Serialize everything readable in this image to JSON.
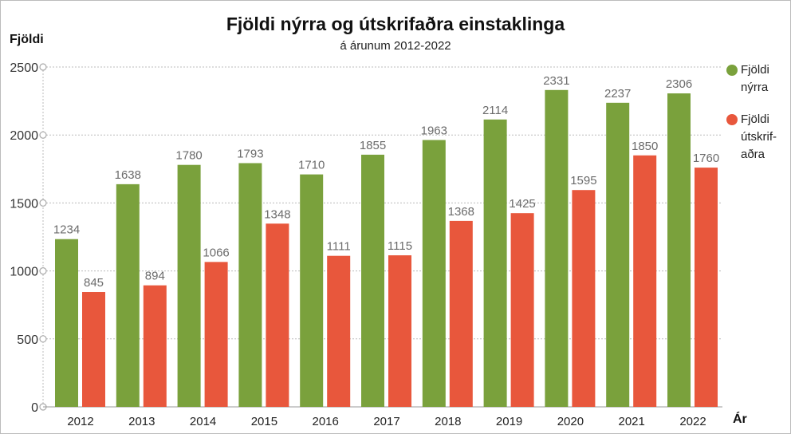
{
  "chart_data": {
    "type": "bar",
    "title": "Fjöldi nýrra og útskrifaðra einstaklinga",
    "subtitle": "á árunum 2012-2022",
    "ylabel": "Fjöldi",
    "xlabel": "Ár",
    "ylim": [
      0,
      2500
    ],
    "yticks": [
      0,
      500,
      1000,
      1500,
      2000,
      2500
    ],
    "grid": true,
    "legend_position": "right",
    "categories": [
      "2012",
      "2013",
      "2014",
      "2015",
      "2016",
      "2017",
      "2018",
      "2019",
      "2020",
      "2021",
      "2022"
    ],
    "series": [
      {
        "name": "Fjöldi nýrra",
        "legend_text": "Fjöldi\nnýrra",
        "color": "#7aa13c",
        "values": [
          1234,
          1638,
          1780,
          1793,
          1710,
          1855,
          1963,
          2114,
          2331,
          2237,
          2306
        ]
      },
      {
        "name": "Fjöldi útskrifaðra",
        "legend_text": "Fjöldi\nútskrif-\naðra",
        "color": "#e8573c",
        "values": [
          845,
          894,
          1066,
          1348,
          1111,
          1115,
          1368,
          1425,
          1595,
          1850,
          1760
        ]
      }
    ]
  }
}
